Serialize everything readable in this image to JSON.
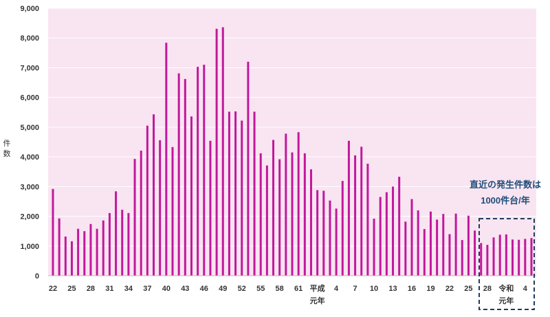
{
  "chart_data": {
    "type": "bar",
    "ylabel": "件数",
    "ylim": [
      0,
      9000
    ],
    "y_ticks": [
      "0",
      "1,000",
      "2,000",
      "3,000",
      "4,000",
      "5,000",
      "6,000",
      "7,000",
      "8,000",
      "9,000"
    ],
    "grid": true,
    "categories": [
      "昭和22",
      "23",
      "24",
      "25",
      "26",
      "27",
      "28",
      "29",
      "30",
      "31",
      "32",
      "33",
      "34",
      "35",
      "36",
      "37",
      "38",
      "39",
      "40",
      "41",
      "42",
      "43",
      "44",
      "45",
      "46",
      "47",
      "48",
      "49",
      "50",
      "51",
      "52",
      "53",
      "54",
      "55",
      "56",
      "57",
      "58",
      "59",
      "60",
      "61",
      "62",
      "63",
      "平成元",
      "2",
      "3",
      "4",
      "5",
      "6",
      "7",
      "8",
      "9",
      "10",
      "11",
      "12",
      "13",
      "14",
      "15",
      "16",
      "17",
      "18",
      "19",
      "20",
      "21",
      "22",
      "23",
      "24",
      "25",
      "26",
      "27",
      "28",
      "29",
      "30",
      "令和元",
      "2",
      "3",
      "4",
      "5"
    ],
    "x_tick_labels": [
      {
        "index": 0,
        "text": "22"
      },
      {
        "index": 3,
        "text": "25"
      },
      {
        "index": 6,
        "text": "28"
      },
      {
        "index": 9,
        "text": "31"
      },
      {
        "index": 12,
        "text": "34"
      },
      {
        "index": 15,
        "text": "37"
      },
      {
        "index": 18,
        "text": "40"
      },
      {
        "index": 21,
        "text": "43"
      },
      {
        "index": 24,
        "text": "46"
      },
      {
        "index": 27,
        "text": "49"
      },
      {
        "index": 30,
        "text": "52"
      },
      {
        "index": 33,
        "text": "55"
      },
      {
        "index": 36,
        "text": "58"
      },
      {
        "index": 39,
        "text": "61"
      },
      {
        "index": 42,
        "text": "平成",
        "sub": "元年"
      },
      {
        "index": 45,
        "text": "4"
      },
      {
        "index": 48,
        "text": "7"
      },
      {
        "index": 51,
        "text": "10"
      },
      {
        "index": 54,
        "text": "13"
      },
      {
        "index": 57,
        "text": "16"
      },
      {
        "index": 60,
        "text": "19"
      },
      {
        "index": 63,
        "text": "22"
      },
      {
        "index": 66,
        "text": "25"
      },
      {
        "index": 69,
        "text": "28"
      },
      {
        "index": 72,
        "text": "令和",
        "sub": "元年"
      },
      {
        "index": 75,
        "text": "4"
      }
    ],
    "series": [
      {
        "values": [
          2920,
          1930,
          1320,
          1160,
          1580,
          1500,
          1740,
          1580,
          1860,
          2110,
          2840,
          2220,
          2110,
          3930,
          4210,
          5050,
          5430,
          4560,
          7840,
          4330,
          6810,
          6620,
          5360,
          7030,
          7100,
          4540,
          8310,
          8360,
          5520,
          5530,
          5220,
          7200,
          5520,
          4120,
          3710,
          4570,
          3920,
          4780,
          4150,
          4830,
          4120,
          3580,
          2880,
          2860,
          2530,
          2260,
          3190,
          4540,
          4050,
          4340,
          3770,
          1920,
          2650,
          2810,
          3000,
          3330,
          1820,
          2580,
          2200,
          1570,
          2160,
          1890,
          2080,
          1400,
          2090,
          1200,
          2020,
          1520,
          1100,
          1040,
          1290,
          1380,
          1390,
          1220,
          1210,
          1240,
          1270
        ]
      }
    ],
    "annotation": {
      "line1": "直近の発生件数は",
      "line2": "1000件台/年"
    },
    "colors": {
      "bar": "#c0189b",
      "plot_bg": "#f9e4f1",
      "grid": "#ffffff",
      "highlight_box": "#1f3b5c",
      "annotation_text": "#1f4e79"
    }
  }
}
